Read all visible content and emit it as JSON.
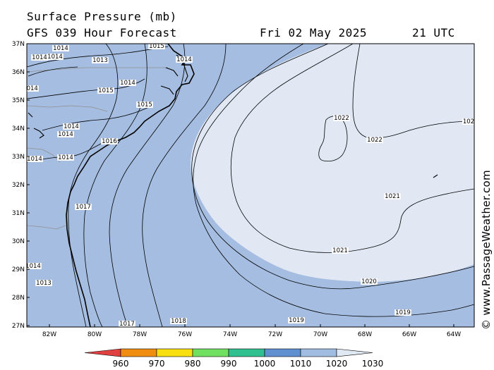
{
  "header": {
    "title": "Surface Pressure (mb)",
    "forecast": "GFS 039 Hour Forecast",
    "date": "Fri 02 May 2025",
    "time": "21 UTC"
  },
  "credit": "© www.PassageWeather.com",
  "map": {
    "lat_labels": [
      "37N",
      "36N",
      "35N",
      "34N",
      "33N",
      "32N",
      "31N",
      "30N",
      "29N",
      "28N",
      "27N"
    ],
    "lon_labels": [
      "82W",
      "80W",
      "78W",
      "76W",
      "74W",
      "72W",
      "70W",
      "68W",
      "66W",
      "64W"
    ],
    "isobar_labels": [
      {
        "text": "1014"
      },
      {
        "text": "1014"
      },
      {
        "text": "1013"
      },
      {
        "text": "1015"
      },
      {
        "text": "1014"
      },
      {
        "text": "1015"
      },
      {
        "text": "1014"
      },
      {
        "text": "1014"
      },
      {
        "text": "1014"
      },
      {
        "text": "1015"
      },
      {
        "text": "1014"
      },
      {
        "text": "1014"
      },
      {
        "text": "1014"
      },
      {
        "text": "1014"
      },
      {
        "text": "1016"
      },
      {
        "text": "1017"
      },
      {
        "text": "1014"
      },
      {
        "text": "1013"
      },
      {
        "text": "1017"
      },
      {
        "text": "1018"
      },
      {
        "text": "1019"
      },
      {
        "text": "1019"
      },
      {
        "text": "1020"
      },
      {
        "text": "1021"
      },
      {
        "text": "1021"
      },
      {
        "text": "1022"
      },
      {
        "text": "1022"
      },
      {
        "text": "102"
      }
    ]
  },
  "colorbar": {
    "labels": [
      "960",
      "970",
      "980",
      "990",
      "1000",
      "1010",
      "1020",
      "1030"
    ],
    "colors": [
      "#e04040",
      "#f08c10",
      "#f8e010",
      "#70e060",
      "#30c090",
      "#6090d0",
      "#a0bce0",
      "#e0e8f4"
    ]
  }
}
